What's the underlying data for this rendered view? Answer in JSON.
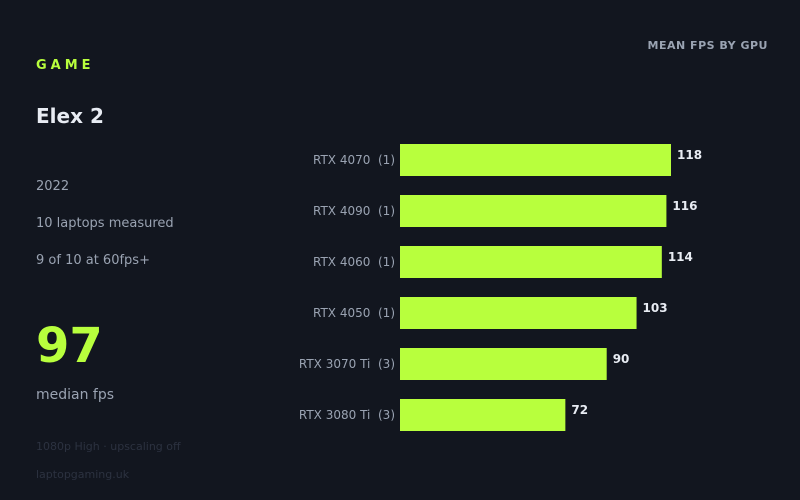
{
  "eyebrow": "GAME",
  "game": "Elex 2",
  "year": "2022",
  "laptops_measured": "10 laptops measured",
  "at_60fps": "9 of 10 at 60fps+",
  "median": {
    "value": "97",
    "label": "median fps"
  },
  "footnote": {
    "settings": "1080p High · upscaling off",
    "source": "laptopgaming.uk"
  },
  "colors": {
    "accent": "#b8ff3d",
    "background": "#12161f",
    "muted": "#9aa3b2",
    "text": "#e8ecf3"
  },
  "chart_data": {
    "type": "bar",
    "orientation": "horizontal",
    "title": "MEAN FPS BY GPU",
    "categories": [
      "RTX 4070  (1)",
      "RTX 4090  (1)",
      "RTX 4060  (1)",
      "RTX 4050  (1)",
      "RTX 3070 Ti  (3)",
      "RTX 3080 Ti  (3)"
    ],
    "values": [
      118,
      116,
      114,
      103,
      90,
      72
    ],
    "xlim": [
      0,
      118
    ],
    "grid": false,
    "legend": "none"
  }
}
